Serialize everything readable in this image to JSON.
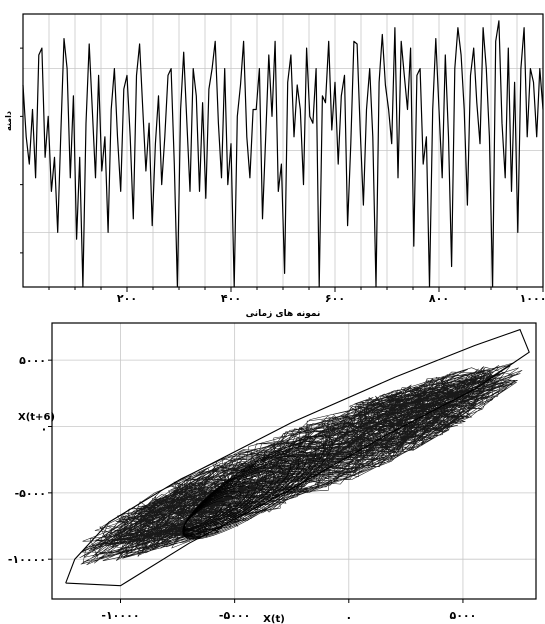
{
  "chart_data": [
    {
      "type": "line",
      "xlabel": "نمونه های زمانی",
      "ylabel": "دامنه",
      "xlim": [
        0,
        1000
      ],
      "ylim": [
        -1,
        1
      ],
      "grid": true,
      "x_ticks": [
        200,
        400,
        600,
        800,
        1000
      ],
      "x_tick_labels": [
        "۲۰۰",
        "۴۰۰",
        "۶۰۰",
        "۸۰۰",
        "۱۰۰۰"
      ],
      "y_tick_labels": [],
      "series": [
        {
          "values": [
            0.48,
            0.1,
            -0.1,
            0.3,
            -0.2,
            0.7,
            0.75,
            -0.05,
            0.25,
            -0.3,
            -0.05,
            -0.6,
            0.12,
            0.82,
            0.6,
            -0.2,
            0.4,
            -0.65,
            -0.05,
            -1.28,
            0.2,
            0.78,
            0.3,
            -0.2,
            0.55,
            -0.15,
            0.1,
            -0.6,
            0.3,
            0.6,
            0.1,
            -0.3,
            0.45,
            0.55,
            0.1,
            -0.5,
            0.55,
            0.78,
            0.3,
            -0.15,
            0.2,
            -0.55,
            0.05,
            0.4,
            -0.25,
            0.1,
            0.55,
            0.6,
            -0.1,
            -1.25,
            0.3,
            0.72,
            0.2,
            -0.3,
            0.6,
            0.4,
            -0.3,
            0.35,
            -0.35,
            0.45,
            0.6,
            0.8,
            0.2,
            -0.2,
            0.6,
            -0.25,
            0.05,
            -1.0,
            0.25,
            0.48,
            0.8,
            0.1,
            -0.2,
            0.3,
            0.3,
            0.6,
            -0.5,
            0.1,
            0.7,
            0.25,
            0.8,
            -0.3,
            -0.1,
            -0.9,
            0.5,
            0.7,
            0.1,
            0.48,
            0.3,
            -0.25,
            0.75,
            0.25,
            0.2,
            0.6,
            -1.15,
            0.4,
            0.35,
            0.8,
            0.15,
            0.5,
            -0.1,
            0.4,
            0.55,
            -0.55,
            0.05,
            0.8,
            0.78,
            0.15,
            -0.4,
            0.3,
            0.6,
            0.1,
            -1.0,
            0.5,
            0.85,
            0.48,
            0.3,
            0.05,
            0.9,
            -0.2,
            0.8,
            0.55,
            0.3,
            0.75,
            -0.7,
            0.55,
            0.6,
            -0.1,
            0.1,
            -1.1,
            0.3,
            0.82,
            0.3,
            -0.2,
            0.7,
            0.1,
            -0.85,
            0.6,
            0.9,
            0.7,
            0.3,
            -0.4,
            0.55,
            0.75,
            0.35,
            0.05,
            0.9,
            0.6,
            0.1,
            -1.05,
            0.8,
            0.95,
            0.2,
            -0.2,
            0.75,
            -0.3,
            0.5,
            -0.6,
            0.6,
            0.9,
            0.1,
            0.6,
            0.5,
            0.1,
            0.6,
            0.3
          ]
        }
      ]
    },
    {
      "type": "scatter",
      "xlabel": "X(t)",
      "ylabel": "X(t+6)",
      "xlim": [
        -13000,
        8200
      ],
      "ylim": [
        -13000,
        7800
      ],
      "grid": true,
      "x_ticks": [
        -10000,
        -5000,
        0,
        5000
      ],
      "x_tick_labels": [
        "-۱۰۰۰۰",
        "-۵۰۰۰",
        ".",
        "۵۰۰۰"
      ],
      "y_ticks": [
        5000,
        0,
        -5000,
        -10000
      ],
      "y_tick_labels": [
        "۵۰۰۰",
        ".",
        "-۵۰۰۰",
        "-۱۰۰۰۰"
      ],
      "attractor": {
        "center": [
          -2200,
          -2800
        ],
        "direction": [
          0.8,
          0.6
        ],
        "half_length": 12200,
        "half_width": 2400,
        "hull": [
          [
            -12400,
            -11800
          ],
          [
            -12000,
            -10000
          ],
          [
            -10500,
            -7200
          ],
          [
            -7600,
            -4200
          ],
          [
            -2500,
            300
          ],
          [
            2000,
            3700
          ],
          [
            5500,
            6100
          ],
          [
            7500,
            7300
          ],
          [
            7900,
            5600
          ],
          [
            5500,
            2800
          ],
          [
            1800,
            -500
          ],
          [
            -2500,
            -4700
          ],
          [
            -7000,
            -8800
          ],
          [
            -10000,
            -12000
          ],
          [
            -12400,
            -11800
          ]
        ]
      }
    }
  ]
}
